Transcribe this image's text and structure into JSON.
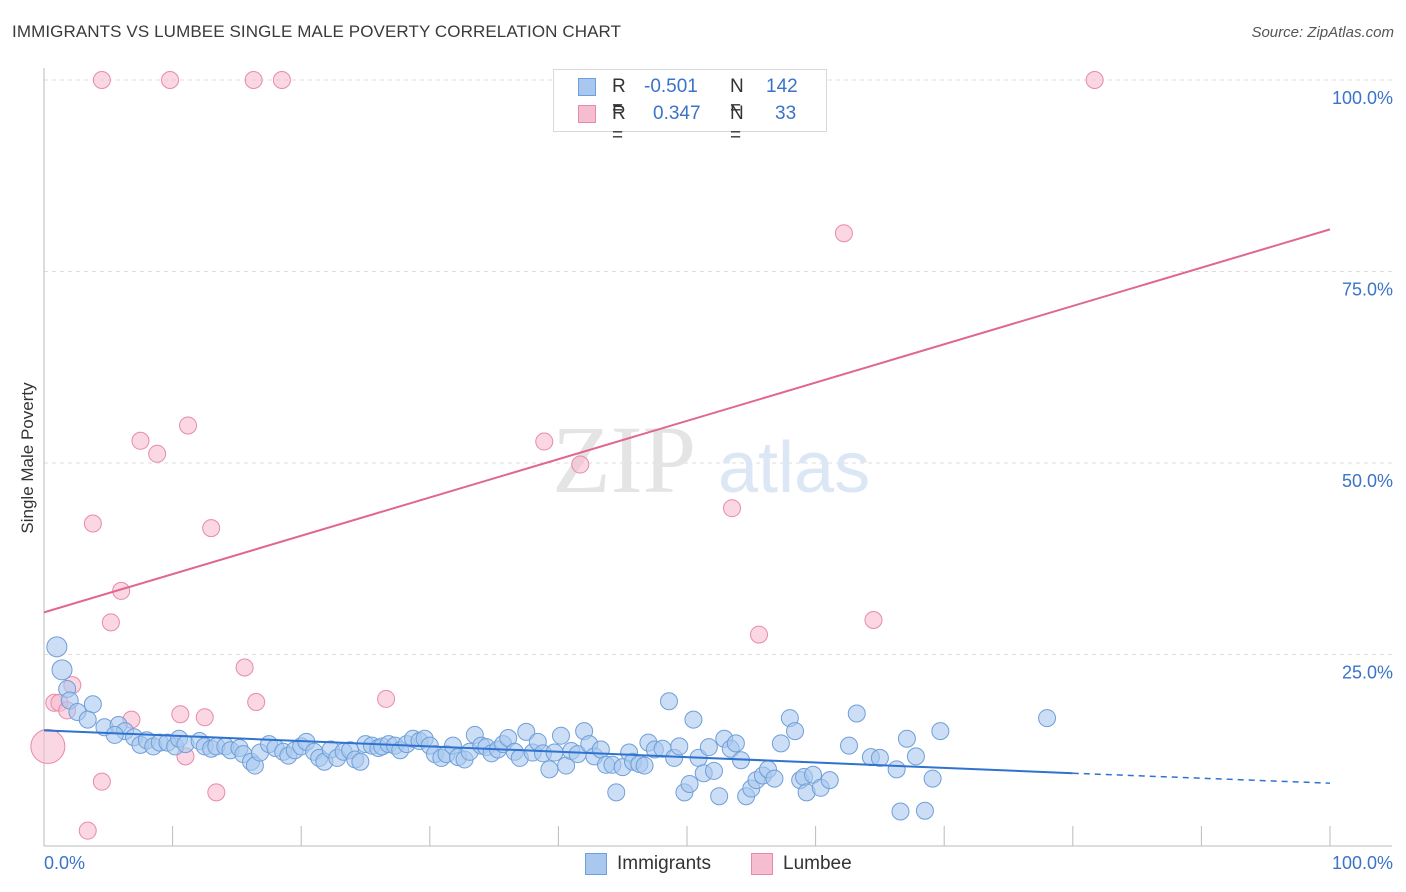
{
  "title": "IMMIGRANTS VS LUMBEE SINGLE MALE POVERTY CORRELATION CHART",
  "source": "Source: ZipAtlas.com",
  "watermark": {
    "zip": "ZIP",
    "atlas": "atlas"
  },
  "legend": {
    "rows": [
      {
        "r_label": "R =",
        "r_value": "-0.501",
        "n_label": "N =",
        "n_value": "142"
      },
      {
        "r_label": "R =",
        "r_value": "0.347",
        "n_label": "N =",
        "n_value": "33"
      }
    ]
  },
  "bottom_legend": [
    "Immigrants",
    "Lumbee"
  ],
  "colors": {
    "immigrants_fill": "#a9c8ef",
    "immigrants_stroke": "#6f9fd8",
    "immigrants_line": "#2f72d0",
    "lumbee_fill": "#f6bdd0",
    "lumbee_stroke": "#e88aaa",
    "lumbee_line": "#e0678f",
    "tick_label": "#3a73c9",
    "grid": "#dddddd"
  },
  "chart_data": {
    "type": "scatter",
    "title": "IMMIGRANTS VS LUMBEE SINGLE MALE POVERTY CORRELATION CHART",
    "xlabel": "",
    "ylabel": "Single Male Poverty",
    "xlim": [
      0,
      100
    ],
    "ylim": [
      0,
      102
    ],
    "x_tick_labels": [
      "0.0%",
      "100.0%"
    ],
    "y_ticks": [
      25,
      50,
      75,
      100
    ],
    "y_tick_labels": [
      "25.0%",
      "50.0%",
      "75.0%",
      "100.0%"
    ],
    "grid": true,
    "legend_position": "top-center",
    "series": [
      {
        "name": "Immigrants",
        "r": -0.501,
        "n": 142,
        "trend": {
          "x0": 0,
          "y0": 15.1,
          "x1": 80,
          "y1": 9.5,
          "dashed_to_x": 100,
          "dashed_to_y": 8.2
        },
        "points": [
          [
            1,
            26
          ],
          [
            1.4,
            23
          ],
          [
            1.8,
            20.5
          ],
          [
            2,
            19
          ],
          [
            2.6,
            17.5
          ],
          [
            3.8,
            18.5
          ],
          [
            3.4,
            16.5
          ],
          [
            4.7,
            15.5
          ],
          [
            5.8,
            15.8
          ],
          [
            6.3,
            15
          ],
          [
            5.5,
            14.5
          ],
          [
            7,
            14.2
          ],
          [
            7.5,
            13.2
          ],
          [
            8,
            13.8
          ],
          [
            8.5,
            13
          ],
          [
            9,
            13.5
          ],
          [
            9.6,
            13.5
          ],
          [
            10.2,
            13
          ],
          [
            10.5,
            14
          ],
          [
            11,
            13.3
          ],
          [
            12.1,
            13.7
          ],
          [
            12.5,
            13
          ],
          [
            13,
            12.7
          ],
          [
            13.4,
            13
          ],
          [
            14.1,
            13
          ],
          [
            14.5,
            12.5
          ],
          [
            15.2,
            12.8
          ],
          [
            15.5,
            12
          ],
          [
            16.1,
            11
          ],
          [
            16.4,
            10.5
          ],
          [
            16.8,
            12.2
          ],
          [
            17.5,
            13.3
          ],
          [
            18,
            12.8
          ],
          [
            18.6,
            12.3
          ],
          [
            19,
            11.8
          ],
          [
            19.5,
            12.5
          ],
          [
            20,
            13
          ],
          [
            20.4,
            13.6
          ],
          [
            21,
            12.3
          ],
          [
            21.4,
            11.5
          ],
          [
            21.8,
            11
          ],
          [
            22.3,
            12.6
          ],
          [
            22.8,
            11.5
          ],
          [
            23.3,
            12.3
          ],
          [
            23.8,
            12.5
          ],
          [
            24.2,
            11.3
          ],
          [
            24.6,
            11
          ],
          [
            25,
            13.3
          ],
          [
            25.5,
            13.1
          ],
          [
            26,
            12.8
          ],
          [
            26.3,
            13
          ],
          [
            26.8,
            13.3
          ],
          [
            27.3,
            13.1
          ],
          [
            27.7,
            12.5
          ],
          [
            28.2,
            13.3
          ],
          [
            28.7,
            14
          ],
          [
            29.2,
            13.7
          ],
          [
            29.6,
            14
          ],
          [
            30,
            13.1
          ],
          [
            30.4,
            12
          ],
          [
            30.9,
            11.5
          ],
          [
            31.3,
            12
          ],
          [
            31.8,
            13.1
          ],
          [
            32.2,
            11.6
          ],
          [
            32.7,
            11.3
          ],
          [
            33.1,
            12.3
          ],
          [
            33.5,
            14.5
          ],
          [
            34,
            13.1
          ],
          [
            34.4,
            12.9
          ],
          [
            34.8,
            12.1
          ],
          [
            35.3,
            12.6
          ],
          [
            35.7,
            13.3
          ],
          [
            36.1,
            14.1
          ],
          [
            36.6,
            12.3
          ],
          [
            37,
            11.5
          ],
          [
            37.5,
            14.9
          ],
          [
            38,
            12.2
          ],
          [
            38.4,
            13.6
          ],
          [
            38.8,
            12.1
          ],
          [
            39.3,
            10
          ],
          [
            39.7,
            12.2
          ],
          [
            40.2,
            14.4
          ],
          [
            40.6,
            10.5
          ],
          [
            41,
            12.4
          ],
          [
            41.5,
            12
          ],
          [
            42,
            15
          ],
          [
            42.4,
            13.3
          ],
          [
            42.8,
            11.7
          ],
          [
            43.3,
            12.6
          ],
          [
            43.7,
            10.6
          ],
          [
            44.2,
            10.6
          ],
          [
            44.5,
            7
          ],
          [
            45,
            10.3
          ],
          [
            45.5,
            12.2
          ],
          [
            45.8,
            11
          ],
          [
            46.3,
            10.7
          ],
          [
            46.7,
            10.5
          ],
          [
            47,
            13.5
          ],
          [
            47.5,
            12.6
          ],
          [
            48.1,
            12.7
          ],
          [
            48.6,
            18.9
          ],
          [
            49,
            11.5
          ],
          [
            49.4,
            13
          ],
          [
            49.8,
            7
          ],
          [
            50.2,
            8.1
          ],
          [
            50.5,
            16.5
          ],
          [
            50.9,
            11.5
          ],
          [
            51.3,
            9.5
          ],
          [
            51.7,
            12.9
          ],
          [
            52.1,
            9.8
          ],
          [
            52.5,
            6.5
          ],
          [
            52.9,
            14
          ],
          [
            53.4,
            12.7
          ],
          [
            53.8,
            13.4
          ],
          [
            54.2,
            11.2
          ],
          [
            54.6,
            6.5
          ],
          [
            55,
            7.5
          ],
          [
            55.4,
            8.6
          ],
          [
            55.9,
            9.2
          ],
          [
            56.3,
            10
          ],
          [
            56.8,
            8.8
          ],
          [
            57.3,
            13.4
          ],
          [
            58,
            16.7
          ],
          [
            58.4,
            15
          ],
          [
            58.8,
            8.6
          ],
          [
            59.1,
            9
          ],
          [
            59.3,
            7
          ],
          [
            59.8,
            9.3
          ],
          [
            60.4,
            7.6
          ],
          [
            61.1,
            8.6
          ],
          [
            62.6,
            13.1
          ],
          [
            63.2,
            17.3
          ],
          [
            64.3,
            11.6
          ],
          [
            65,
            11.5
          ],
          [
            66.3,
            10
          ],
          [
            66.6,
            4.5
          ],
          [
            67.1,
            14
          ],
          [
            67.8,
            11.7
          ],
          [
            68.5,
            4.6
          ],
          [
            69.1,
            8.8
          ],
          [
            69.7,
            15
          ],
          [
            78,
            16.7
          ]
        ]
      },
      {
        "name": "Lumbee",
        "r": 0.347,
        "n": 33,
        "trend": {
          "x0": 0,
          "y0": 30.5,
          "x1": 100,
          "y1": 80.5
        },
        "points": [
          [
            0.3,
            13
          ],
          [
            0.8,
            18.7
          ],
          [
            1.2,
            18.7
          ],
          [
            1.8,
            17.7
          ],
          [
            2.2,
            21
          ],
          [
            3.4,
            2
          ],
          [
            3.8,
            42.1
          ],
          [
            4.5,
            8.4
          ],
          [
            5.2,
            29.2
          ],
          [
            6,
            33.3
          ],
          [
            6.8,
            16.5
          ],
          [
            7.5,
            52.9
          ],
          [
            8.8,
            51.2
          ],
          [
            10.6,
            17.2
          ],
          [
            11,
            11.7
          ],
          [
            11.2,
            54.9
          ],
          [
            12.5,
            16.8
          ],
          [
            13,
            41.5
          ],
          [
            13.4,
            7
          ],
          [
            15.6,
            23.3
          ],
          [
            16.5,
            18.8
          ],
          [
            26.6,
            19.2
          ],
          [
            38.9,
            52.8
          ],
          [
            41.7,
            49.8
          ],
          [
            53.5,
            44.1
          ],
          [
            55.6,
            27.6
          ],
          [
            62.2,
            80
          ],
          [
            64.5,
            29.5
          ],
          [
            81.7,
            100
          ],
          [
            4.5,
            100
          ],
          [
            9.8,
            100
          ],
          [
            16.3,
            100
          ],
          [
            18.5,
            100
          ]
        ]
      }
    ]
  }
}
